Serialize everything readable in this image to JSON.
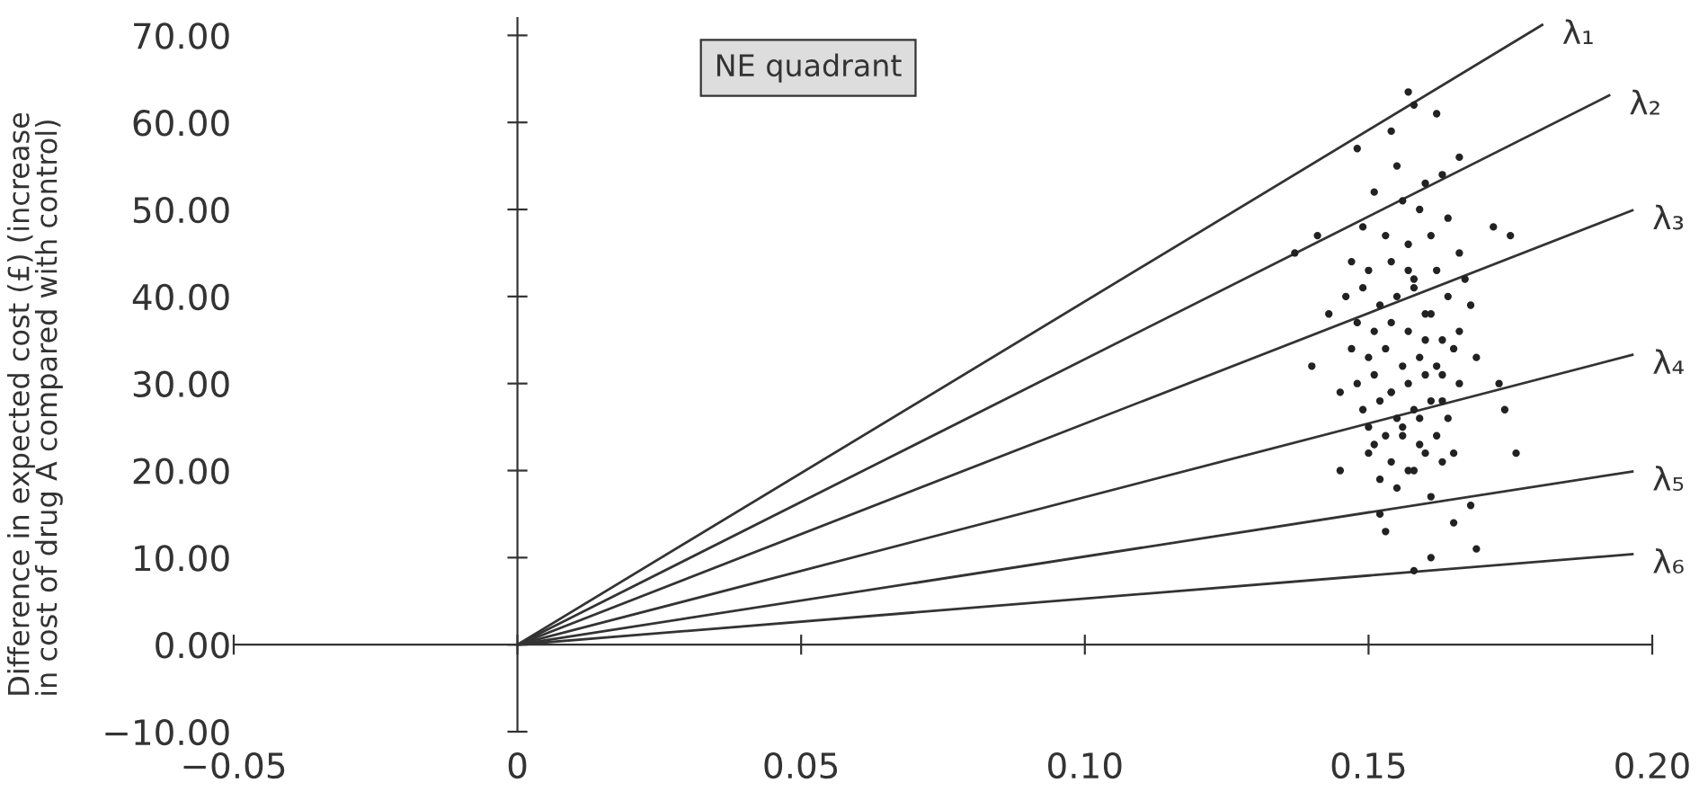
{
  "chart_data": {
    "type": "scatter",
    "ylabel": "Difference in expected cost (£) (increase\nin cost of drug A compared with control)",
    "xlim": [
      -0.05,
      0.2
    ],
    "ylim": [
      -10,
      72
    ],
    "xticks": [
      {
        "value": -0.05,
        "label": "−0.05"
      },
      0,
      0.05,
      {
        "value": 0.1,
        "label": "0.10"
      },
      0.15,
      {
        "value": 0.2,
        "label": "0.20"
      }
    ],
    "yticks": [
      {
        "value": -10,
        "label": "−10.00"
      },
      {
        "value": 0,
        "label": "0.00"
      },
      {
        "value": 10,
        "label": "10.00"
      },
      {
        "value": 20,
        "label": "20.00"
      },
      {
        "value": 30,
        "label": "30.00"
      },
      {
        "value": 40,
        "label": "40.00"
      },
      {
        "value": 50,
        "label": "50.00"
      },
      {
        "value": 60,
        "label": "60.00"
      },
      {
        "value": 70,
        "label": "70.00"
      }
    ],
    "legend": false,
    "annotations": [
      "NE quadrant"
    ],
    "series": [
      {
        "type": "line",
        "name": "λ₁",
        "color": "#333333",
        "x": [
          0,
          0.1806
        ],
        "values": [
          0,
          71.2
        ]
      },
      {
        "type": "line",
        "name": "λ₂",
        "color": "#333333",
        "x": [
          0,
          0.1924
        ],
        "values": [
          0,
          63.1
        ]
      },
      {
        "type": "line",
        "name": "λ₃",
        "color": "#333333",
        "x": [
          0,
          0.1965
        ],
        "values": [
          0,
          49.9
        ]
      },
      {
        "type": "line",
        "name": "λ₄",
        "color": "#333333",
        "x": [
          0,
          0.1965
        ],
        "values": [
          0,
          33.3
        ]
      },
      {
        "type": "line",
        "name": "λ₅",
        "color": "#333333",
        "x": [
          0,
          0.1965
        ],
        "values": [
          0,
          19.9
        ]
      },
      {
        "type": "line",
        "name": "λ₆",
        "color": "#333333",
        "x": [
          0,
          0.1965
        ],
        "values": [
          0,
          10.4
        ]
      },
      {
        "color": "#222222",
        "marker": "circle",
        "x": [
          0.157,
          0.158,
          0.162,
          0.154,
          0.148,
          0.166,
          0.172,
          0.175,
          0.141,
          0.137,
          0.143,
          0.14,
          0.145,
          0.173,
          0.174,
          0.176,
          0.145,
          0.152,
          0.153,
          0.158,
          0.161,
          0.169,
          0.165,
          0.15,
          0.168,
          0.155,
          0.16,
          0.163,
          0.151,
          0.156,
          0.159,
          0.164,
          0.149,
          0.153,
          0.157,
          0.161,
          0.166,
          0.147,
          0.15,
          0.154,
          0.158,
          0.162,
          0.167,
          0.146,
          0.149,
          0.152,
          0.155,
          0.158,
          0.161,
          0.164,
          0.168,
          0.148,
          0.151,
          0.154,
          0.157,
          0.16,
          0.163,
          0.166,
          0.147,
          0.15,
          0.153,
          0.156,
          0.159,
          0.162,
          0.165,
          0.169,
          0.148,
          0.151,
          0.154,
          0.157,
          0.16,
          0.163,
          0.166,
          0.149,
          0.152,
          0.155,
          0.158,
          0.161,
          0.164,
          0.15,
          0.153,
          0.156,
          0.159,
          0.162,
          0.165,
          0.151,
          0.154,
          0.157,
          0.16,
          0.163,
          0.152,
          0.155,
          0.158,
          0.161,
          0.156,
          0.159,
          0.154,
          0.16,
          0.157,
          0.163
        ],
        "values": [
          63.5,
          62,
          61,
          59,
          57,
          56,
          48,
          47,
          47,
          45,
          38,
          32,
          29,
          30,
          27,
          22,
          20,
          15,
          13,
          8.5,
          10,
          11,
          14,
          22,
          16,
          55,
          53,
          54,
          52,
          51,
          50,
          49,
          48,
          47,
          46,
          47,
          45,
          44,
          43,
          44,
          42,
          43,
          42,
          40,
          41,
          39,
          40,
          41,
          38,
          40,
          39,
          37,
          36,
          37,
          36,
          38,
          35,
          36,
          34,
          33,
          34,
          32,
          33,
          32,
          34,
          33,
          30,
          31,
          29,
          30,
          31,
          28,
          30,
          27,
          28,
          26,
          27,
          28,
          26,
          25,
          24,
          25,
          23,
          24,
          22,
          23,
          21,
          20,
          22,
          21,
          19,
          18,
          20,
          17,
          24,
          26,
          29,
          35,
          43,
          31
        ]
      }
    ]
  }
}
